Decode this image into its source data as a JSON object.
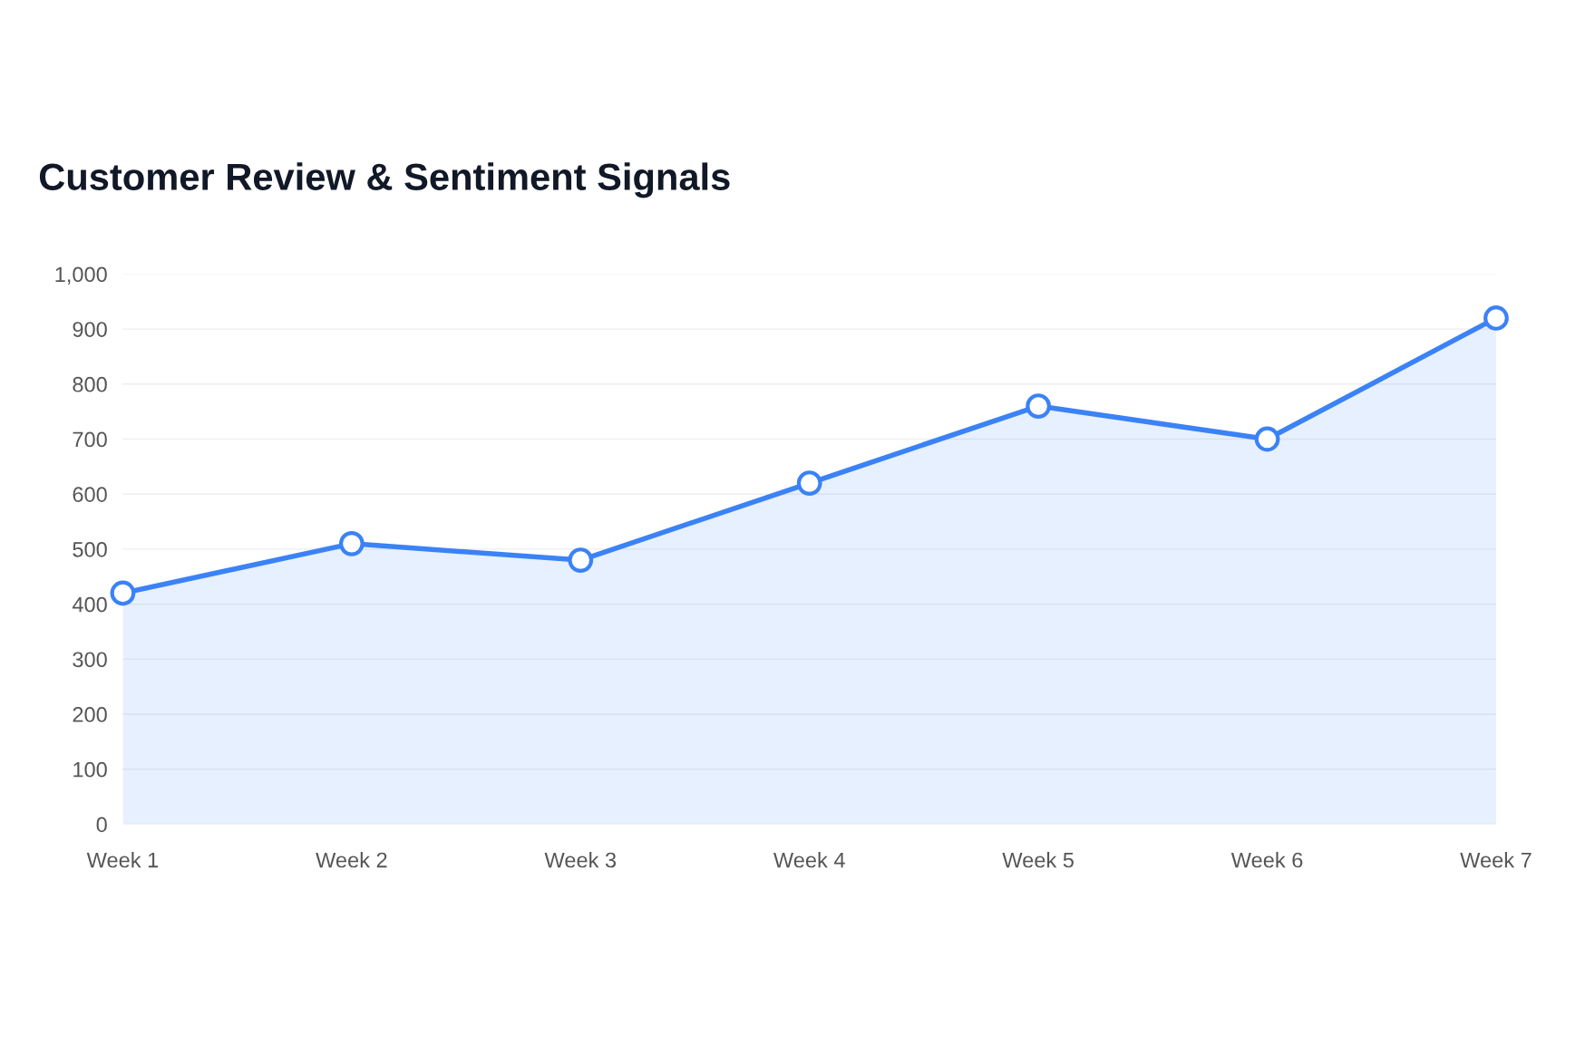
{
  "chart_data": {
    "type": "area",
    "title": "Customer Review & Sentiment Signals",
    "categories": [
      "Week 1",
      "Week 2",
      "Week 3",
      "Week 4",
      "Week 5",
      "Week 6",
      "Week 7"
    ],
    "series": [
      {
        "color": "#3b82f6",
        "values": [
          420,
          510,
          480,
          620,
          760,
          700,
          920
        ]
      }
    ],
    "ylim": [
      0,
      1000
    ],
    "yticks": [
      0,
      100,
      200,
      300,
      400,
      500,
      600,
      700,
      800,
      900,
      {
        "value": 1000,
        "label": "1,000"
      }
    ],
    "grid": "y",
    "marker": "circle",
    "line_style": "solid"
  }
}
